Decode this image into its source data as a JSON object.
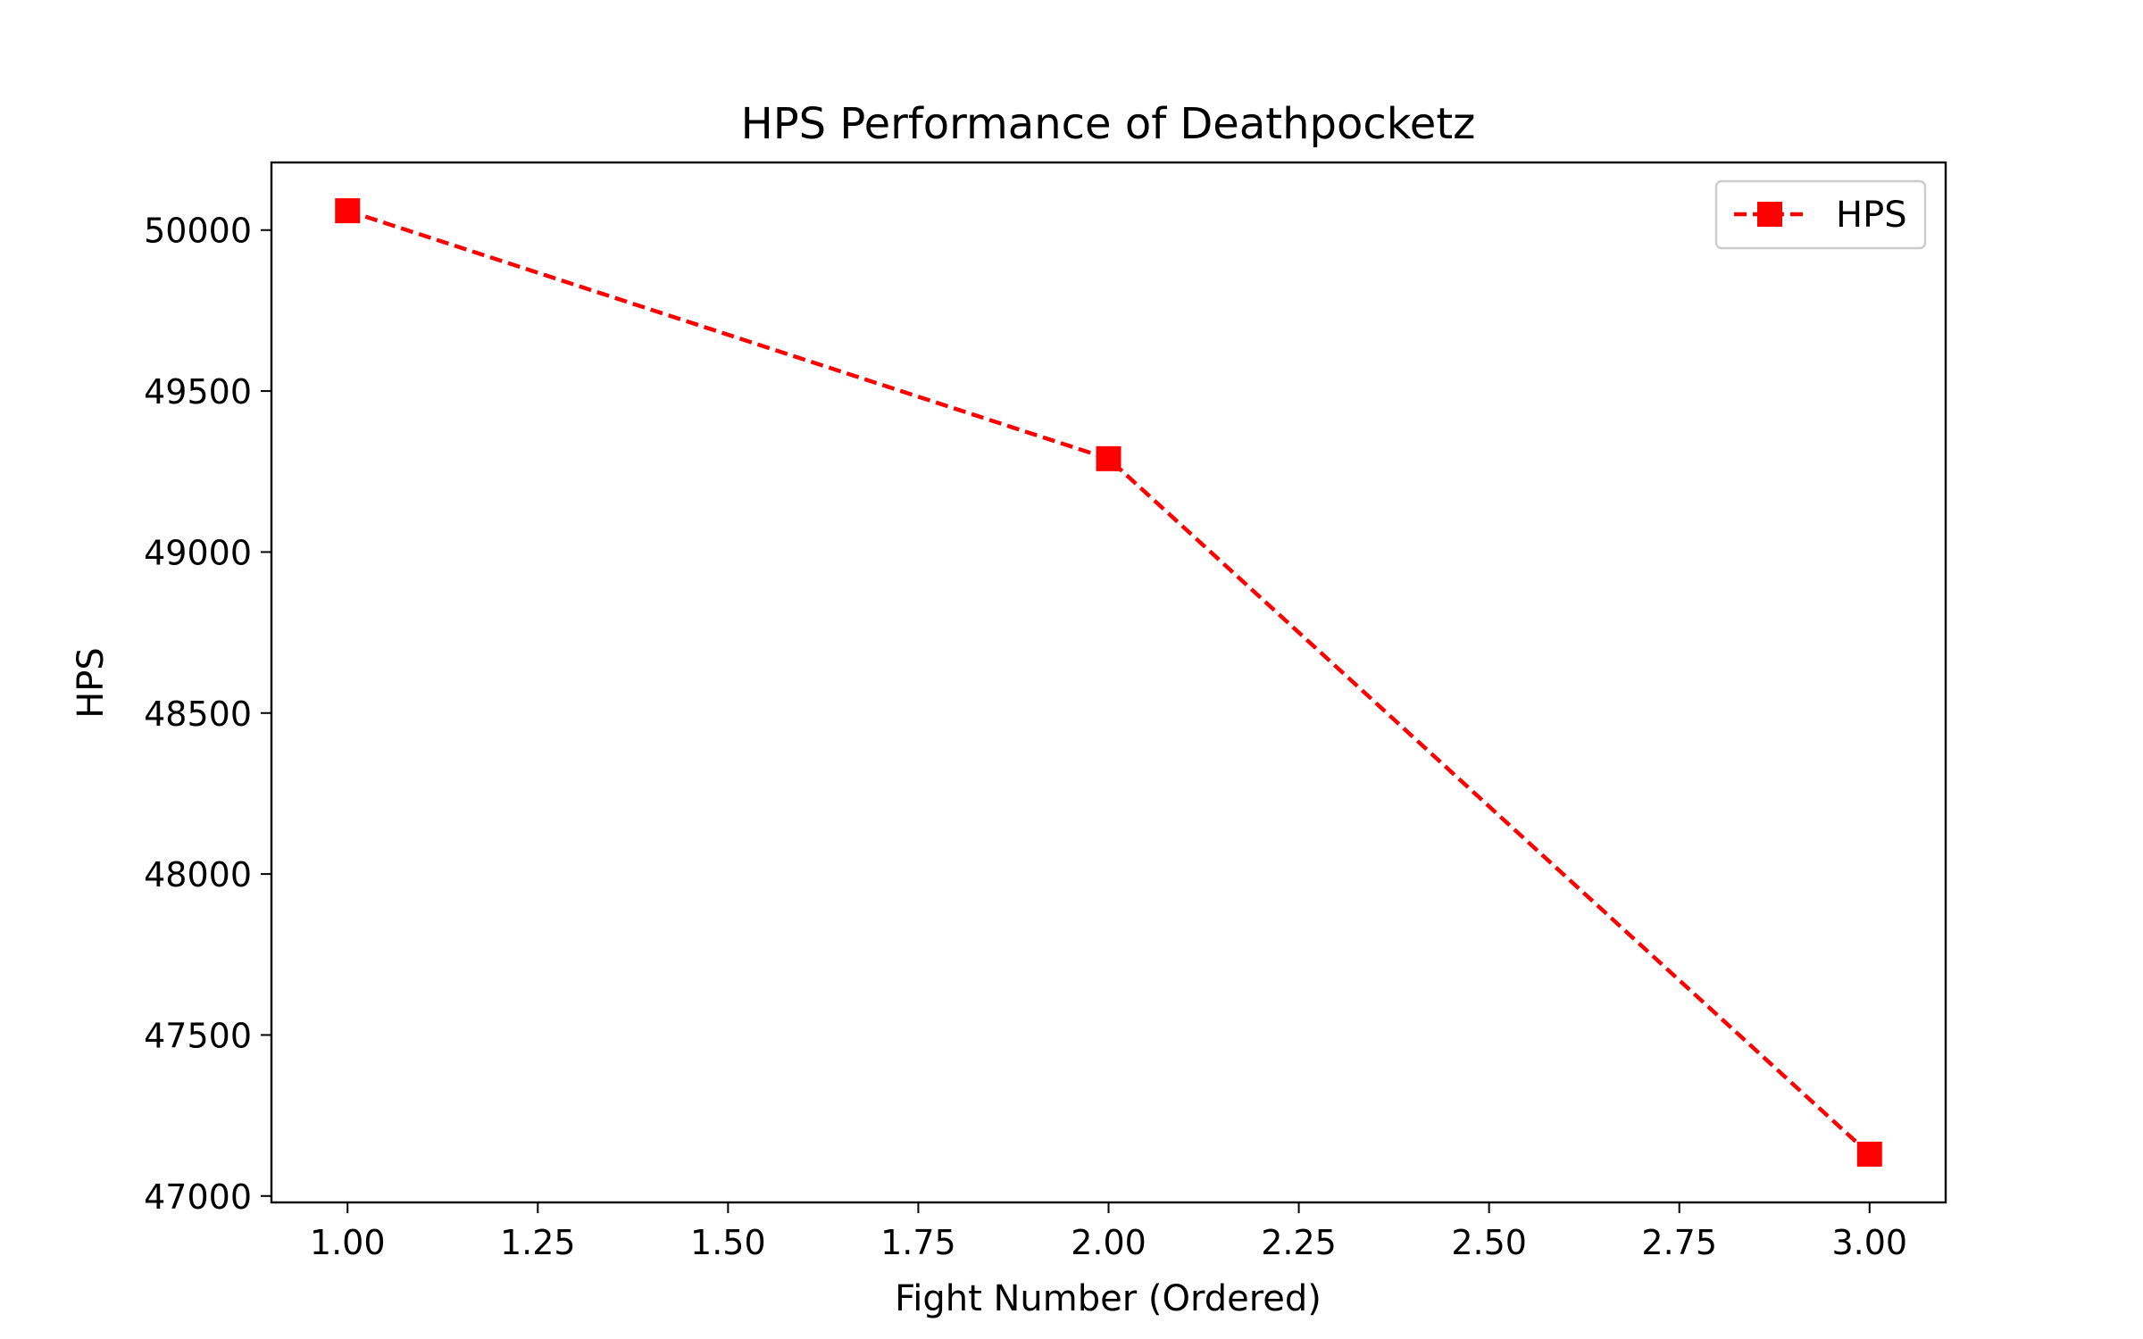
{
  "chart_data": {
    "type": "line",
    "title": "HPS Performance of Deathpocketz",
    "xlabel": "Fight Number (Ordered)",
    "ylabel": "HPS",
    "xlim": [
      0.9,
      3.1
    ],
    "ylim": [
      46980,
      50210
    ],
    "x_ticks": [
      1.0,
      1.25,
      1.5,
      1.75,
      2.0,
      2.25,
      2.5,
      2.75,
      3.0
    ],
    "x_tick_labels": [
      "1.00",
      "1.25",
      "1.50",
      "1.75",
      "2.00",
      "2.25",
      "2.50",
      "2.75",
      "3.00"
    ],
    "y_ticks": [
      47000,
      47500,
      48000,
      48500,
      49000,
      49500,
      50000
    ],
    "y_tick_labels": [
      "47000",
      "47500",
      "48000",
      "48500",
      "49000",
      "49500",
      "50000"
    ],
    "grid": false,
    "legend_position": "top-right",
    "series": [
      {
        "name": "HPS",
        "color": "#ff0000",
        "line_style": "dashed",
        "marker": "square",
        "x": [
          1,
          2,
          3
        ],
        "values": [
          50060,
          49290,
          47130
        ]
      }
    ]
  }
}
